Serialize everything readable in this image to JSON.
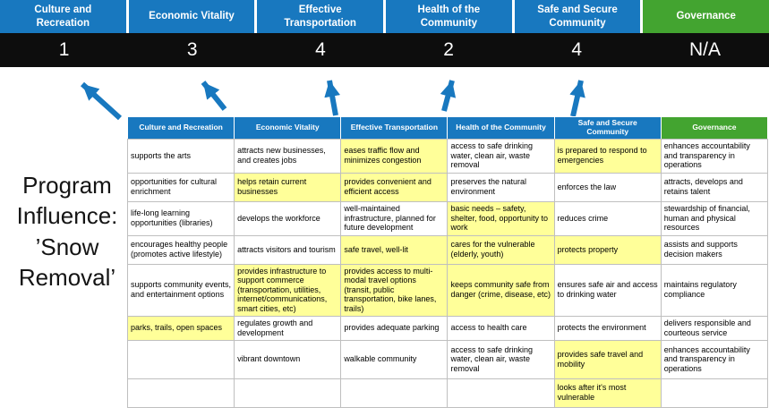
{
  "title": "Program Influence: ’Snow Removal’",
  "pillars": [
    {
      "label": "Culture and Recreation",
      "score": "1",
      "color": "blue"
    },
    {
      "label": "Economic Vitality",
      "score": "3",
      "color": "blue"
    },
    {
      "label": "Effective Transportation",
      "score": "4",
      "color": "blue"
    },
    {
      "label": "Health of the Community",
      "score": "2",
      "color": "blue"
    },
    {
      "label": "Safe and Secure Community",
      "score": "4",
      "color": "blue"
    },
    {
      "label": "Governance",
      "score": "N/A",
      "color": "green"
    }
  ],
  "table": {
    "columns": [
      {
        "label": "Culture and Recreation",
        "color": "blue"
      },
      {
        "label": "Economic Vitality",
        "color": "blue"
      },
      {
        "label": "Effective Transportation",
        "color": "blue"
      },
      {
        "label": "Health of the Community",
        "color": "blue"
      },
      {
        "label": "Safe and Secure Community",
        "color": "blue"
      },
      {
        "label": "Governance",
        "color": "green"
      }
    ],
    "rows": [
      [
        {
          "text": "supports the arts",
          "highlight": false
        },
        {
          "text": "attracts new businesses, and creates jobs",
          "highlight": false
        },
        {
          "text": "eases traffic flow and minimizes congestion",
          "highlight": true
        },
        {
          "text": "access to safe drinking water, clean air, waste removal",
          "highlight": false
        },
        {
          "text": "is prepared to respond to emergencies",
          "highlight": true
        },
        {
          "text": "enhances accountability and transparency in operations",
          "highlight": false
        }
      ],
      [
        {
          "text": "opportunities for cultural enrichment",
          "highlight": false
        },
        {
          "text": "helps retain current businesses",
          "highlight": true
        },
        {
          "text": "provides convenient and efficient access",
          "highlight": true
        },
        {
          "text": "preserves the natural environment",
          "highlight": false
        },
        {
          "text": "enforces the law",
          "highlight": false
        },
        {
          "text": "attracts, develops and retains talent",
          "highlight": false
        }
      ],
      [
        {
          "text": "life-long learning opportunities (libraries)",
          "highlight": false
        },
        {
          "text": "develops the workforce",
          "highlight": false
        },
        {
          "text": "well-maintained infrastructure, planned for future development",
          "highlight": false
        },
        {
          "text": "basic needs – safety, shelter, food, opportunity to work",
          "highlight": true
        },
        {
          "text": "reduces crime",
          "highlight": false
        },
        {
          "text": "stewardship of financial, human and physical resources",
          "highlight": false
        }
      ],
      [
        {
          "text": "encourages healthy people (promotes active lifestyle)",
          "highlight": false
        },
        {
          "text": "attracts visitors and tourism",
          "highlight": false
        },
        {
          "text": "safe travel, well-lit",
          "highlight": true
        },
        {
          "text": "cares for the vulnerable (elderly, youth)",
          "highlight": true
        },
        {
          "text": "protects property",
          "highlight": true
        },
        {
          "text": "assists and supports decision makers",
          "highlight": false
        }
      ],
      [
        {
          "text": "supports community events, and entertainment options",
          "highlight": false
        },
        {
          "text": "provides infrastructure to support commerce (transportation, utilities, internet/communications, smart cities, etc)",
          "highlight": true
        },
        {
          "text": "provides access to multi-modal travel options (transit, public transportation, bike lanes, trails)",
          "highlight": true
        },
        {
          "text": "keeps community safe from danger (crime, disease, etc)",
          "highlight": true
        },
        {
          "text": "ensures safe air and access to drinking water",
          "highlight": false
        },
        {
          "text": "maintains regulatory compliance",
          "highlight": false
        }
      ],
      [
        {
          "text": "parks, trails, open spaces",
          "highlight": true
        },
        {
          "text": "regulates growth and development",
          "highlight": false
        },
        {
          "text": "provides adequate parking",
          "highlight": false
        },
        {
          "text": "access to health care",
          "highlight": false
        },
        {
          "text": "protects the environment",
          "highlight": false
        },
        {
          "text": "delivers responsible and courteous service",
          "highlight": false
        }
      ],
      [
        {
          "text": "",
          "highlight": false
        },
        {
          "text": "vibrant downtown",
          "highlight": false
        },
        {
          "text": "walkable community",
          "highlight": false
        },
        {
          "text": "access to safe drinking water, clean air, waste removal",
          "highlight": false
        },
        {
          "text": "provides safe travel and mobility",
          "highlight": true
        },
        {
          "text": "enhances accountability and transparency in operations",
          "highlight": false
        }
      ],
      [
        {
          "text": "",
          "highlight": false
        },
        {
          "text": "",
          "highlight": false
        },
        {
          "text": "",
          "highlight": false
        },
        {
          "text": "",
          "highlight": false
        },
        {
          "text": "looks after it's most vulnerable",
          "highlight": true
        },
        {
          "text": "",
          "highlight": false
        }
      ]
    ]
  },
  "colors": {
    "pillar_blue": "#1878BF",
    "pillar_green": "#43A430",
    "highlight_yellow": "#FFFF99",
    "score_bar_bg": "#0D0D0D",
    "arrow_blue": "#1878BF",
    "table_border": "#BFBFBF"
  }
}
